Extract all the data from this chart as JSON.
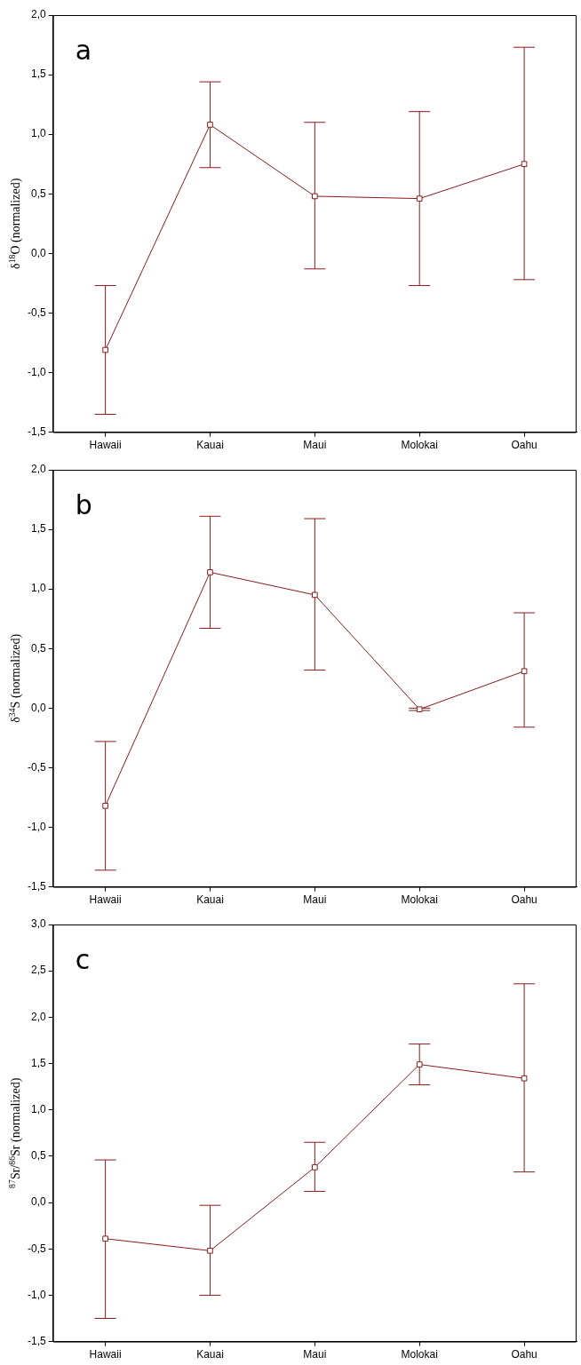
{
  "chart_data": [
    {
      "type": "line",
      "ylabel": "δ$^{18}$O (normalized)",
      "annotations": [
        "a"
      ],
      "categories": [
        "Hawaii",
        "Kauai",
        "Maui",
        "Molokai",
        "Oahu"
      ],
      "series": [
        {
          "color": "#8b1a1a",
          "values": [
            -0.81,
            1.08,
            0.48,
            0.46,
            0.75
          ],
          "errors": [
            [
              -1.35,
              -0.27
            ],
            [
              0.72,
              1.44
            ],
            [
              -0.13,
              1.1
            ],
            [
              -0.27,
              1.19
            ],
            [
              -0.22,
              1.73
            ]
          ]
        }
      ],
      "ylim": [
        -1.5,
        2
      ],
      "yticks": [
        {
          "value": -1.5,
          "label": "-1,5"
        },
        {
          "value": -1,
          "label": "-1,0"
        },
        {
          "value": -0.5,
          "label": "-0,5"
        },
        {
          "value": 0,
          "label": "0,0"
        },
        {
          "value": 0.5,
          "label": "0,5"
        },
        {
          "value": 1,
          "label": "1,0"
        },
        {
          "value": 1.5,
          "label": "1,5"
        },
        {
          "value": 2,
          "label": "2,0"
        }
      ],
      "grid": false,
      "legend": false,
      "marker": "square",
      "line_style": "solid"
    },
    {
      "type": "line",
      "ylabel": "δ$^{34}$S (normalized)",
      "annotations": [
        "b"
      ],
      "categories": [
        "Hawaii",
        "Kauai",
        "Maui",
        "Molokai",
        "Oahu"
      ],
      "series": [
        {
          "color": "#8b1a1a",
          "values": [
            -0.82,
            1.14,
            0.95,
            -0.01,
            0.31
          ],
          "errors": [
            [
              -1.36,
              -0.28
            ],
            [
              0.67,
              1.61
            ],
            [
              0.32,
              1.59
            ],
            [
              -0.02,
              0
            ],
            [
              -0.16,
              0.8
            ]
          ]
        }
      ],
      "ylim": [
        -1.5,
        2
      ],
      "yticks": [
        {
          "value": -1.5,
          "label": "-1,5"
        },
        {
          "value": -1,
          "label": "-1,0"
        },
        {
          "value": -0.5,
          "label": "-0,5"
        },
        {
          "value": 0,
          "label": "0,0"
        },
        {
          "value": 0.5,
          "label": "0,5"
        },
        {
          "value": 1,
          "label": "1,0"
        },
        {
          "value": 1.5,
          "label": "1,5"
        },
        {
          "value": 2,
          "label": "2,0"
        }
      ],
      "grid": false,
      "legend": false,
      "marker": "square",
      "line_style": "solid"
    },
    {
      "type": "line",
      "ylabel": "$^{87}$Sr/$^{86}$Sr (normalized)",
      "annotations": [
        "c"
      ],
      "categories": [
        "Hawaii",
        "Kauai",
        "Maui",
        "Molokai",
        "Oahu"
      ],
      "series": [
        {
          "color": "#8b1a1a",
          "values": [
            -0.39,
            -0.52,
            0.38,
            1.49,
            1.34
          ],
          "errors": [
            [
              -1.25,
              0.46
            ],
            [
              -1,
              -0.03
            ],
            [
              0.12,
              0.65
            ],
            [
              1.27,
              1.71
            ],
            [
              0.33,
              2.36
            ]
          ]
        }
      ],
      "ylim": [
        -1.5,
        3
      ],
      "yticks": [
        {
          "value": -1.5,
          "label": "-1,5"
        },
        {
          "value": -1,
          "label": "-1,0"
        },
        {
          "value": -0.5,
          "label": "-0,5"
        },
        {
          "value": 0,
          "label": "0,0"
        },
        {
          "value": 0.5,
          "label": "0,5"
        },
        {
          "value": 1,
          "label": "1,0"
        },
        {
          "value": 1.5,
          "label": "1,5"
        },
        {
          "value": 2,
          "label": "2,0"
        },
        {
          "value": 2.5,
          "label": "2,5"
        },
        {
          "value": 3,
          "label": "3,0"
        }
      ],
      "grid": false,
      "legend": false,
      "marker": "square",
      "line_style": "solid"
    }
  ]
}
